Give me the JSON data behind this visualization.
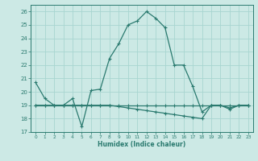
{
  "xlabel": "Humidex (Indice chaleur)",
  "bg_color": "#cce9e5",
  "grid_color": "#a8d5d0",
  "line_color": "#2a7a6f",
  "xlim": [
    -0.5,
    23.5
  ],
  "ylim": [
    17,
    26.5
  ],
  "yticks": [
    17,
    18,
    19,
    20,
    21,
    22,
    23,
    24,
    25,
    26
  ],
  "xticks": [
    0,
    1,
    2,
    3,
    4,
    5,
    6,
    7,
    8,
    9,
    10,
    11,
    12,
    13,
    14,
    15,
    16,
    17,
    18,
    19,
    20,
    21,
    22,
    23
  ],
  "line1_x": [
    0,
    1,
    2,
    3,
    4,
    5,
    6,
    7,
    8,
    9,
    10,
    11,
    12,
    13,
    14,
    15,
    16,
    17,
    18,
    19,
    20,
    21,
    22,
    23
  ],
  "line1_y": [
    20.7,
    19.5,
    19.0,
    19.0,
    19.5,
    17.4,
    20.1,
    20.2,
    22.5,
    23.6,
    25.0,
    25.3,
    26.0,
    25.5,
    24.8,
    22.0,
    22.0,
    20.4,
    18.5,
    19.0,
    19.0,
    18.8,
    19.0,
    19.0
  ],
  "line2_x": [
    0,
    1,
    2,
    3,
    4,
    5,
    6,
    7,
    8,
    9,
    10,
    11,
    12,
    13,
    14,
    15,
    16,
    17,
    18,
    19,
    20,
    21,
    22,
    23
  ],
  "line2_y": [
    19.0,
    19.0,
    19.0,
    19.0,
    19.0,
    19.0,
    19.0,
    19.0,
    19.0,
    19.0,
    19.0,
    19.0,
    19.0,
    19.0,
    19.0,
    19.0,
    19.0,
    19.0,
    19.0,
    19.0,
    19.0,
    19.0,
    19.0,
    19.0
  ],
  "line3_x": [
    0,
    1,
    2,
    3,
    4,
    5,
    6,
    7,
    8,
    9,
    10,
    11,
    12,
    13,
    14,
    15,
    16,
    17,
    18,
    19,
    20,
    21,
    22,
    23
  ],
  "line3_y": [
    19.0,
    19.0,
    19.0,
    19.0,
    19.0,
    19.0,
    19.0,
    19.0,
    19.0,
    18.9,
    18.8,
    18.7,
    18.6,
    18.5,
    18.4,
    18.3,
    18.2,
    18.1,
    18.0,
    19.0,
    19.0,
    18.7,
    19.0,
    19.0
  ]
}
